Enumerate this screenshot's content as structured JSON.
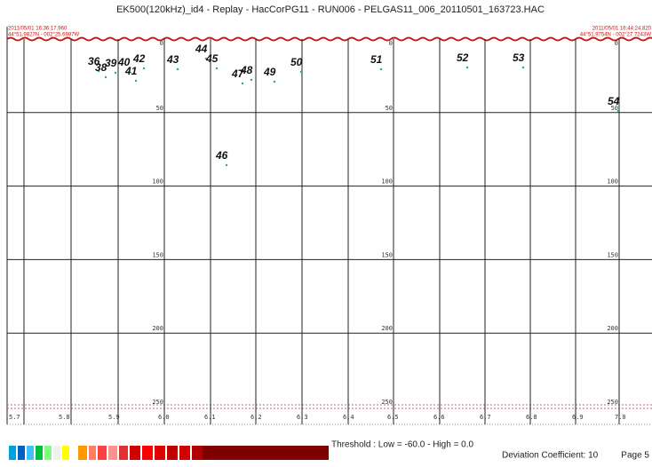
{
  "header": {
    "title": "EK500(120kHz)_id4 - Replay - HacCorPG11 - RUN006 - PELGAS11_006_20110501_163723.HAC",
    "start_time": "2011/05/01 16:36:17.960",
    "start_position": "44°51.9827N - 002°25.6987W",
    "end_time": "2011/05/01 16:44:24.820",
    "end_position": "44°51.9754N - 002°27.7243W"
  },
  "depth_labels": [
    "0",
    "50",
    "100",
    "150",
    "200",
    "250"
  ],
  "distance_labels": [
    "5.7",
    "5.8",
    "5.9",
    "6.0",
    "6.1",
    "6.2",
    "6.3",
    "6.4",
    "6.5",
    "6.6",
    "6.7",
    "6.8",
    "6.9",
    "7.0"
  ],
  "schools": [
    "36",
    "39",
    "38",
    "40",
    "42",
    "41",
    "43",
    "44",
    "45",
    "46",
    "47",
    "48",
    "49",
    "50",
    "51",
    "52",
    "53",
    "54"
  ],
  "footer": {
    "threshold": "Threshold : Low = -60.0 - High = 0.0",
    "deviation": "Deviation Coefficient: 10",
    "page": "Page 5"
  }
}
